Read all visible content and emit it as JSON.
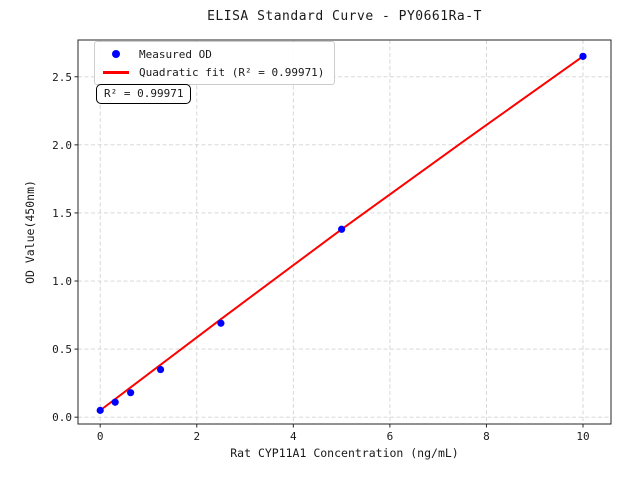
{
  "chart_data": {
    "type": "scatter",
    "title": "ELISA Standard Curve - PY0661Ra-T",
    "xlabel": "Rat CYP11A1 Concentration (ng/mL)",
    "ylabel": "OD Value(450nm)",
    "xlim": [
      -0.46,
      10.58
    ],
    "ylim": [
      -0.05,
      2.77
    ],
    "xticks": [
      0,
      2,
      4,
      6,
      8,
      10
    ],
    "yticks": [
      0.0,
      0.5,
      1.0,
      1.5,
      2.0,
      2.5
    ],
    "grid": true,
    "grid_style": "dashed",
    "legend_position": "upper left",
    "series": [
      {
        "name": "Measured OD",
        "kind": "scatter",
        "marker": "circle",
        "color": "#0000ff",
        "x": [
          0,
          0.31,
          0.63,
          1.25,
          2.5,
          5,
          10
        ],
        "y": [
          0.05,
          0.11,
          0.18,
          0.35,
          0.69,
          1.38,
          2.65
        ]
      },
      {
        "name": "Quadratic fit (R² = 0.99971)",
        "kind": "line",
        "color": "#ff0000",
        "x": [
          0,
          2.5,
          5,
          7.5,
          10
        ],
        "y": [
          0.05,
          0.72,
          1.38,
          2.02,
          2.65
        ]
      }
    ],
    "annotation": "R² = 0.99971",
    "r_squared": "0.99971",
    "colors": {
      "grid": "#d3d3d3",
      "spine": "#262626",
      "tick_label": "#1a1a1a"
    }
  }
}
